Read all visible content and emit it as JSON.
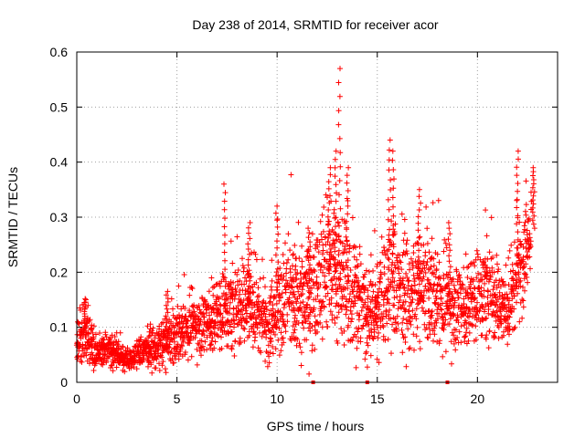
{
  "chart_data": {
    "type": "scatter",
    "title": "Day 238 of 2014, SRMTID for receiver acor",
    "xlabel": "GPS time / hours",
    "ylabel": "SRMTID / TECUs",
    "xlim": [
      0,
      24
    ],
    "ylim": [
      0,
      0.6
    ],
    "xticks": [
      0,
      5,
      10,
      15,
      20
    ],
    "yticks": [
      0,
      0.1,
      0.2,
      0.3,
      0.4,
      0.5,
      0.6
    ],
    "xtick_labels": [
      "0",
      "5",
      "10",
      "15",
      "20"
    ],
    "ytick_labels": [
      "0",
      "0.1",
      "0.2",
      "0.3",
      "0.4",
      "0.5",
      "0.6"
    ],
    "grid": true,
    "marker": "plus",
    "series": [
      {
        "name": "SRMTID",
        "color": "#ff0000",
        "trend": [
          {
            "x": 0.0,
            "y": 0.07,
            "spread": 0.02
          },
          {
            "x": 0.3,
            "y": 0.09,
            "spread": 0.03
          },
          {
            "x": 1.0,
            "y": 0.06,
            "spread": 0.015
          },
          {
            "x": 2.0,
            "y": 0.055,
            "spread": 0.015
          },
          {
            "x": 2.6,
            "y": 0.04,
            "spread": 0.01
          },
          {
            "x": 3.5,
            "y": 0.06,
            "spread": 0.015
          },
          {
            "x": 4.5,
            "y": 0.07,
            "spread": 0.025
          },
          {
            "x": 5.5,
            "y": 0.1,
            "spread": 0.025
          },
          {
            "x": 6.5,
            "y": 0.11,
            "spread": 0.03
          },
          {
            "x": 7.5,
            "y": 0.13,
            "spread": 0.04
          },
          {
            "x": 8.5,
            "y": 0.15,
            "spread": 0.045
          },
          {
            "x": 9.5,
            "y": 0.11,
            "spread": 0.035
          },
          {
            "x": 10.5,
            "y": 0.15,
            "spread": 0.05
          },
          {
            "x": 11.5,
            "y": 0.15,
            "spread": 0.05
          },
          {
            "x": 12.5,
            "y": 0.2,
            "spread": 0.06
          },
          {
            "x": 13.5,
            "y": 0.18,
            "spread": 0.06
          },
          {
            "x": 14.5,
            "y": 0.12,
            "spread": 0.04
          },
          {
            "x": 15.5,
            "y": 0.17,
            "spread": 0.06
          },
          {
            "x": 16.5,
            "y": 0.16,
            "spread": 0.05
          },
          {
            "x": 17.5,
            "y": 0.17,
            "spread": 0.05
          },
          {
            "x": 18.5,
            "y": 0.14,
            "spread": 0.04
          },
          {
            "x": 19.5,
            "y": 0.14,
            "spread": 0.04
          },
          {
            "x": 20.5,
            "y": 0.17,
            "spread": 0.05
          },
          {
            "x": 21.5,
            "y": 0.13,
            "spread": 0.035
          },
          {
            "x": 22.0,
            "y": 0.2,
            "spread": 0.05
          },
          {
            "x": 22.7,
            "y": 0.28,
            "spread": 0.04
          }
        ],
        "peaks": [
          {
            "x": 0.4,
            "y": 0.15
          },
          {
            "x": 4.5,
            "y": 0.165
          },
          {
            "x": 7.4,
            "y": 0.36
          },
          {
            "x": 8.6,
            "y": 0.29
          },
          {
            "x": 10.0,
            "y": 0.32
          },
          {
            "x": 11.6,
            "y": 0.28
          },
          {
            "x": 12.6,
            "y": 0.39
          },
          {
            "x": 12.9,
            "y": 0.42
          },
          {
            "x": 13.1,
            "y": 0.57
          },
          {
            "x": 13.5,
            "y": 0.39
          },
          {
            "x": 15.6,
            "y": 0.44
          },
          {
            "x": 15.8,
            "y": 0.42
          },
          {
            "x": 17.1,
            "y": 0.35
          },
          {
            "x": 18.6,
            "y": 0.29
          },
          {
            "x": 22.0,
            "y": 0.42
          },
          {
            "x": 22.8,
            "y": 0.39
          }
        ],
        "baseline_markers_x": [
          11.8,
          14.5,
          18.5
        ]
      }
    ]
  }
}
